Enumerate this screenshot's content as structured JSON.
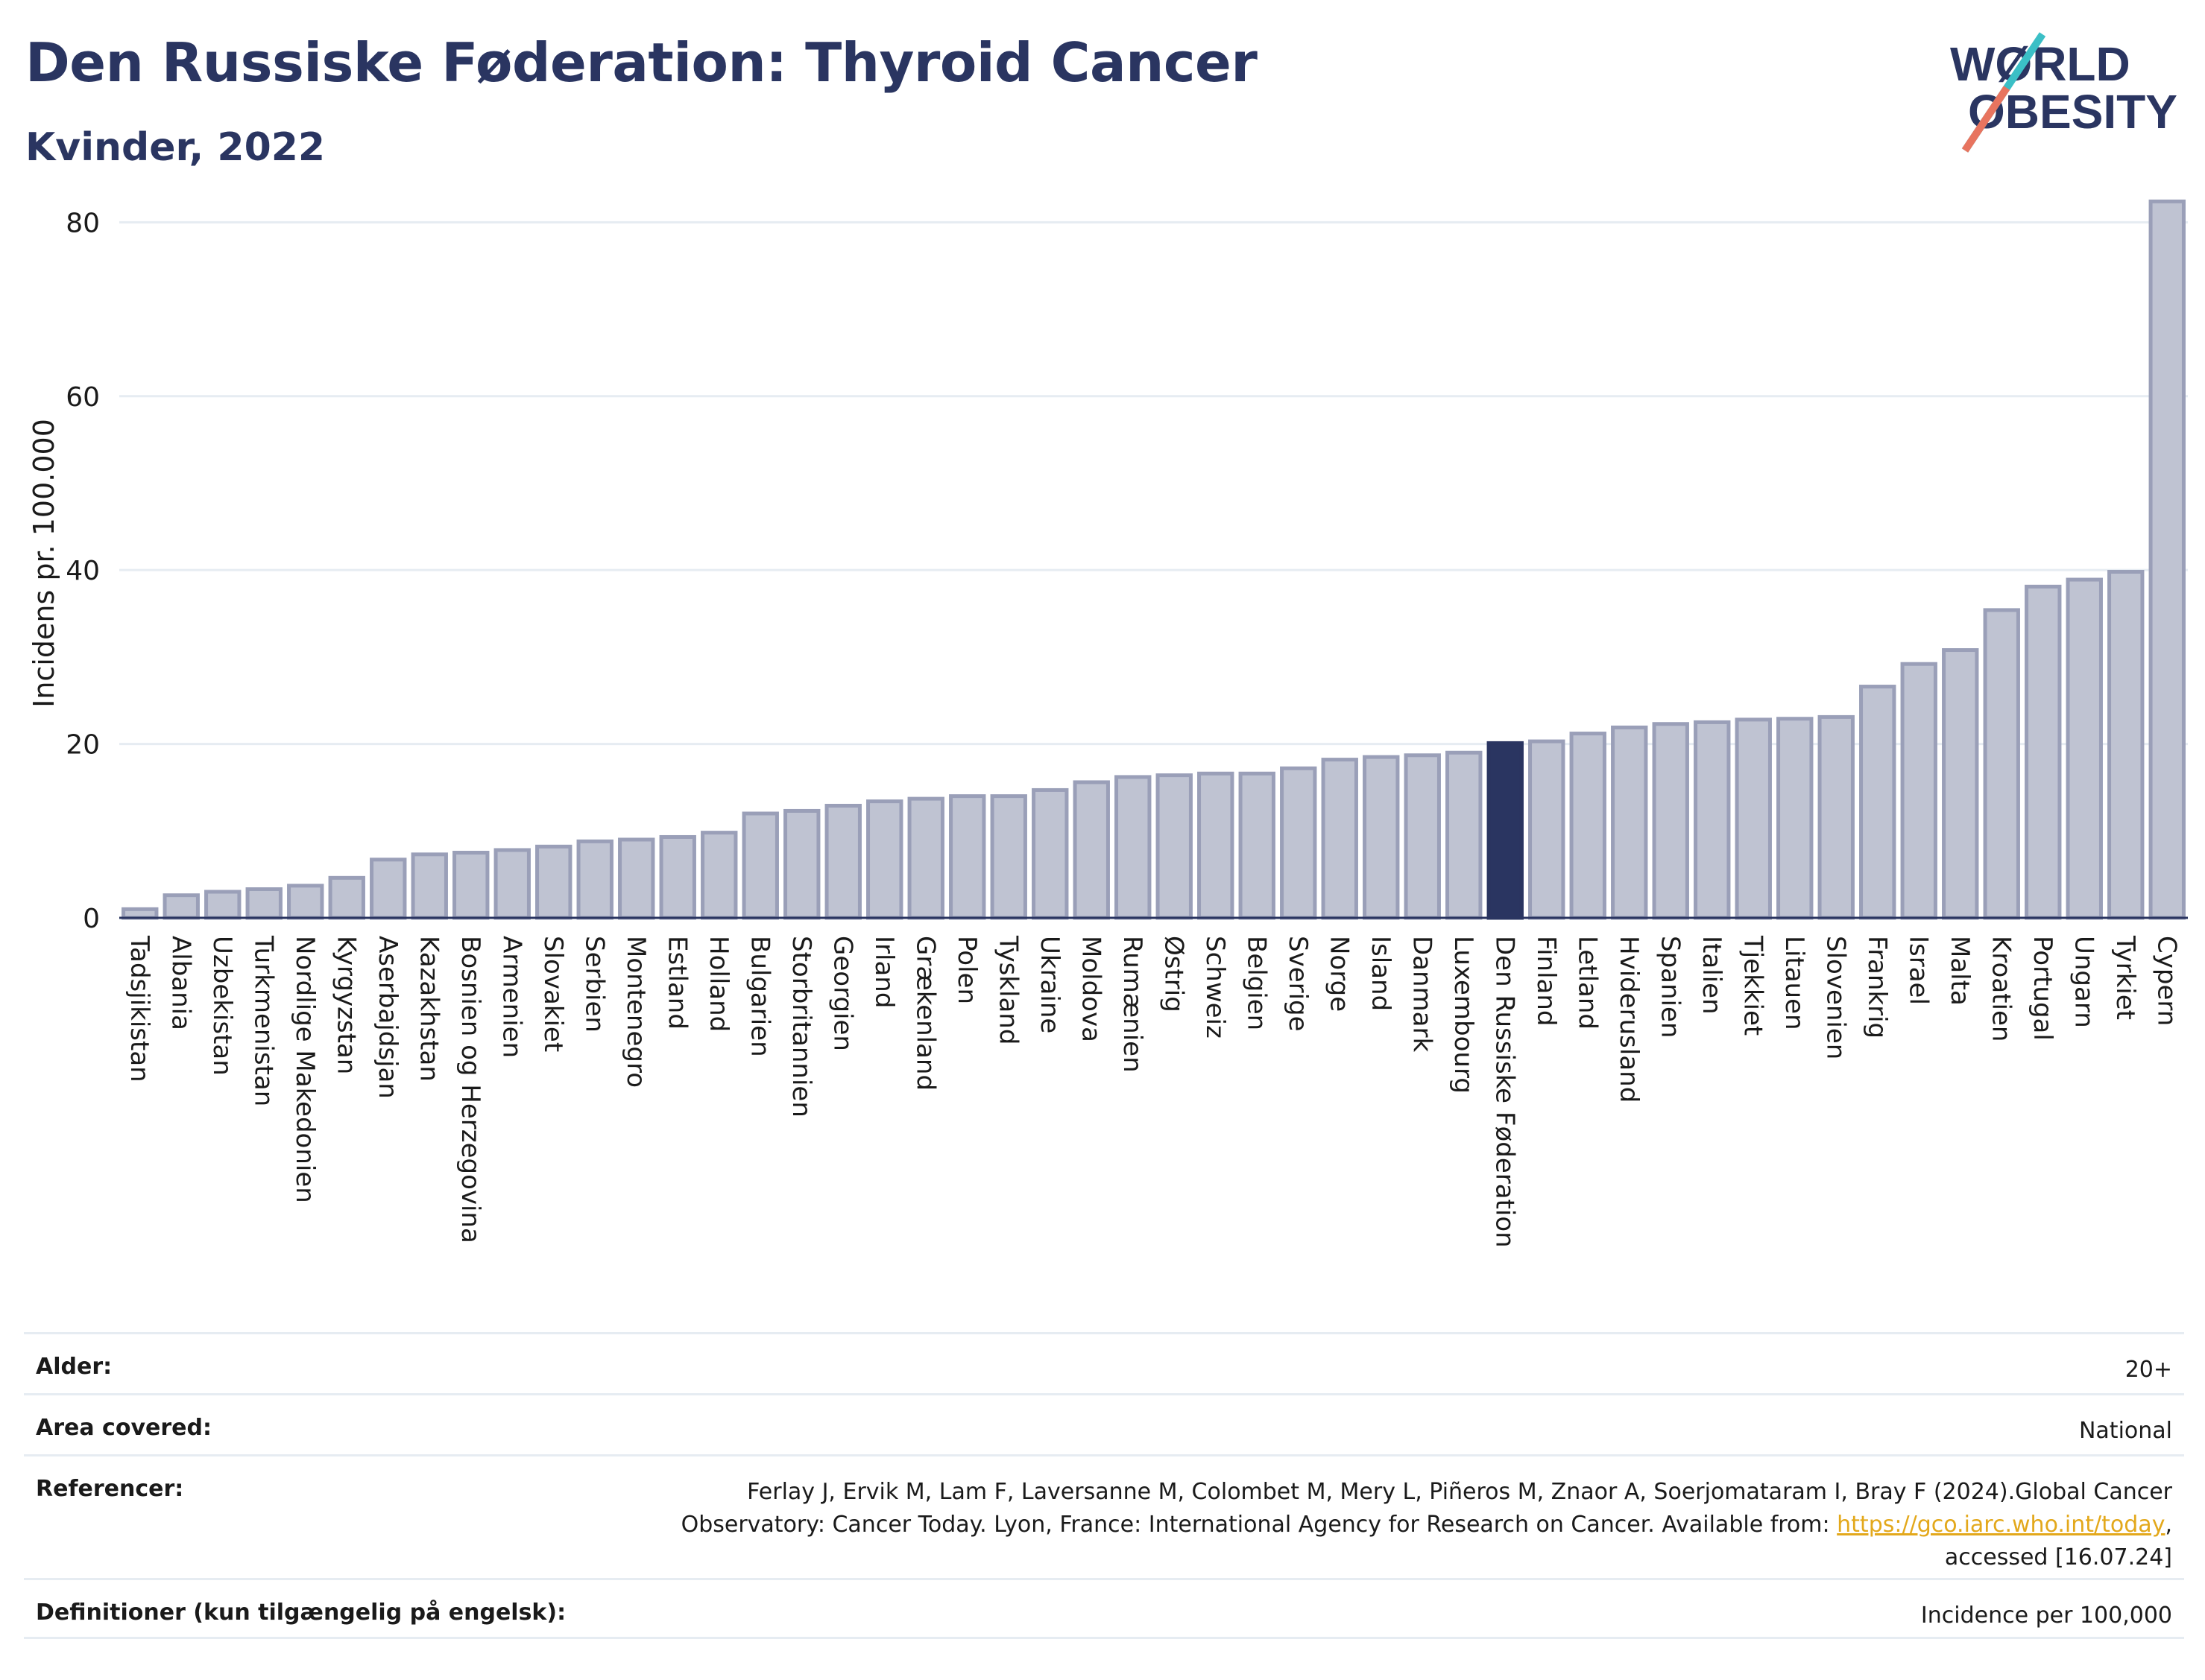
{
  "header": {
    "title": "Den Russiske Føderation: Thyroid Cancer",
    "subtitle": "Kvinder, 2022"
  },
  "logo": {
    "line1": "WØRLD",
    "line2": "OBESITY"
  },
  "chart_data": {
    "type": "bar",
    "ylabel": "Incidens pr. 100.000",
    "xlabel": "",
    "ylim": [
      0,
      85
    ],
    "yticks": [
      0,
      20,
      40,
      60,
      80
    ],
    "grid": true,
    "highlight": "Den Russiske Føderation",
    "colors": {
      "bar": "#bfc3d2",
      "bar_edge": "#9a9fb8",
      "highlight": "#2a3561",
      "grid": "#e6ecf2"
    },
    "categories": [
      "Tadsjikistan",
      "Albania",
      "Uzbekistan",
      "Turkmenistan",
      "Nordlige Makedonien",
      "Kyrgyzstan",
      "Aserbajdsjan",
      "Kazakhstan",
      "Bosnien og Herzegovina",
      "Armenien",
      "Slovakiet",
      "Serbien",
      "Montenegro",
      "Estland",
      "Holland",
      "Bulgarien",
      "Storbritannien",
      "Georgien",
      "Irland",
      "Grækenland",
      "Polen",
      "Tyskland",
      "Ukraine",
      "Moldova",
      "Rumænien",
      "Østrig",
      "Schweiz",
      "Belgien",
      "Sverige",
      "Norge",
      "Island",
      "Danmark",
      "Luxembourg",
      "Den Russiske Føderation",
      "Finland",
      "Letland",
      "Hviderusland",
      "Spanien",
      "Italien",
      "Tjekkiet",
      "Litauen",
      "Slovenien",
      "Frankrig",
      "Israel",
      "Malta",
      "Kroatien",
      "Portugal",
      "Ungarn",
      "Tyrkiet",
      "Cypern"
    ],
    "values": [
      1.0,
      2.6,
      3.0,
      3.3,
      3.7,
      4.6,
      6.7,
      7.3,
      7.5,
      7.8,
      8.2,
      8.8,
      9.0,
      9.3,
      9.8,
      12.0,
      12.3,
      12.9,
      13.4,
      13.7,
      14.0,
      14.0,
      14.7,
      15.6,
      16.2,
      16.4,
      16.6,
      16.6,
      17.2,
      18.2,
      18.5,
      18.7,
      19.0,
      20.1,
      20.3,
      21.2,
      21.9,
      22.3,
      22.5,
      22.8,
      22.9,
      23.1,
      26.6,
      29.2,
      30.8,
      35.4,
      38.1,
      38.9,
      39.8,
      82.4
    ]
  },
  "meta": {
    "age_label": "Alder:",
    "age_value": "20+",
    "area_label": "Area covered:",
    "area_value": "National",
    "ref_label": "Referencer:",
    "ref_text_1": "Ferlay J, Ervik M, Lam F, Laversanne M, Colombet M, Mery L, Piñeros M, Znaor A, Soerjomataram I, Bray F (2024).Global Cancer",
    "ref_text_2": "Observatory: Cancer Today. Lyon, France: International Agency for Research on Cancer. Available from: ",
    "ref_link": "https://gco.iarc.who.int/today",
    "ref_text_3": ",",
    "ref_text_4": "accessed [16.07.24]",
    "def_label": "Definitioner (kun tilgængelig på engelsk):",
    "def_value": "Incidence per 100,000"
  }
}
